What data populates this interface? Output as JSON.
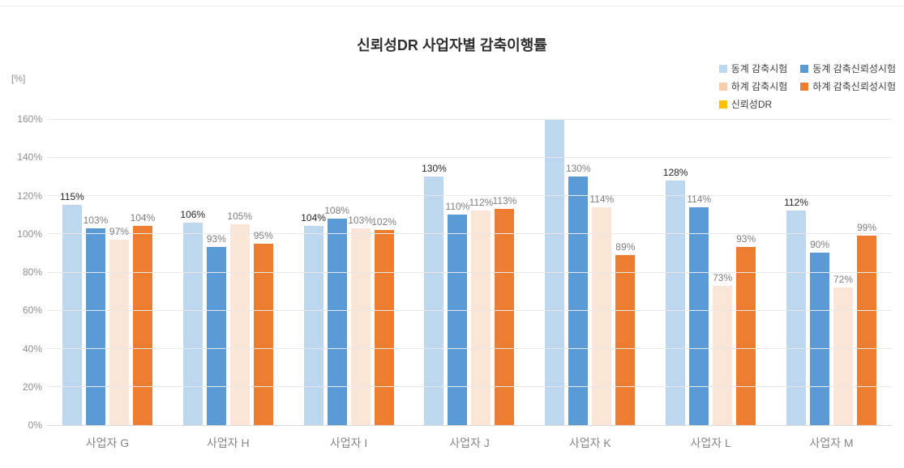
{
  "chart_data": {
    "type": "bar",
    "title": "신뢰성DR 사업자별 감축이행률",
    "unit_label": "[%]",
    "ylim": [
      0,
      160
    ],
    "y_tick_step": 20,
    "y_ticks": [
      "0%",
      "20%",
      "40%",
      "60%",
      "80%",
      "100%",
      "120%",
      "140%",
      "160%"
    ],
    "grid": true,
    "legend_position": "top-right",
    "categories": [
      "사업자 G",
      "사업자 H",
      "사업자 I",
      "사업자 J",
      "사업자 K",
      "사업자 L",
      "사업자 M"
    ],
    "series": [
      {
        "name": "동계 감축시험",
        "color": "#BDD7EE",
        "values": [
          115,
          106,
          104,
          130,
          160,
          128,
          112
        ],
        "labels": [
          "115%",
          "106%",
          "104%",
          "130%",
          "",
          "128%",
          "112%"
        ],
        "label_color": "#262626"
      },
      {
        "name": "동계 감축신뢰성시험",
        "color": "#5B9BD5",
        "values": [
          103,
          93,
          108,
          110,
          130,
          114,
          90
        ],
        "labels": [
          "103%",
          "93%",
          "108%",
          "110%",
          "130%",
          "114%",
          "90%"
        ],
        "label_color": "#7f7f7f"
      },
      {
        "name": "하계 감축시험",
        "color": "#FBE5D6",
        "legend_color": "#F8CBAD",
        "values": [
          97,
          105,
          103,
          112,
          114,
          73,
          72
        ],
        "labels": [
          "97%",
          "105%",
          "103%",
          "112%",
          "114%",
          "73%",
          "72%"
        ],
        "label_color": "#7f7f7f"
      },
      {
        "name": "하계 감축신뢰성시험",
        "color": "#ED7D31",
        "values": [
          104,
          95,
          102,
          113,
          89,
          93,
          99
        ],
        "labels": [
          "104%",
          "95%",
          "102%",
          "113%",
          "89%",
          "93%",
          "99%"
        ],
        "label_color": "#7f7f7f"
      },
      {
        "name": "신뢰성DR",
        "color": "#FFC000",
        "values": [],
        "labels": [],
        "label_color": "#7f7f7f"
      }
    ]
  }
}
